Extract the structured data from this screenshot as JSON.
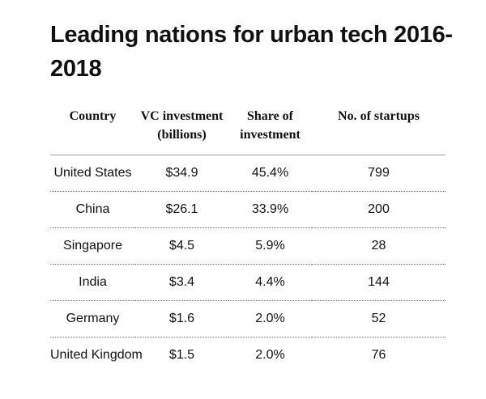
{
  "chart_data": {
    "type": "table",
    "title": "Leading nations for urban tech 2016-2018",
    "columns": [
      "Country",
      "VC investment (billions)",
      "Share of investment",
      "No. of startups"
    ],
    "rows": [
      [
        "United States",
        "$34.9",
        "45.4%",
        "799"
      ],
      [
        "China",
        "$26.1",
        "33.9%",
        "200"
      ],
      [
        "Singapore",
        "$4.5",
        "5.9%",
        "28"
      ],
      [
        "India",
        "$3.4",
        "4.4%",
        "144"
      ],
      [
        "Germany",
        "$1.6",
        "2.0%",
        "52"
      ],
      [
        "United Kingdom",
        "$1.5",
        "2.0%",
        "76"
      ]
    ]
  }
}
